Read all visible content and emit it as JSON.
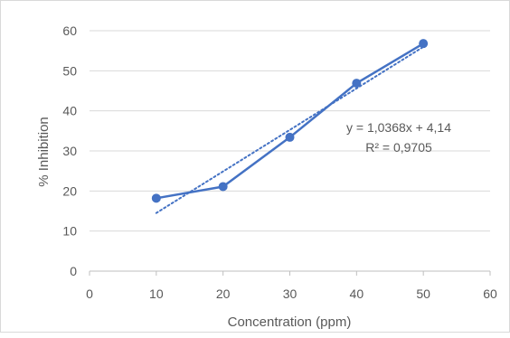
{
  "chart_data": {
    "type": "scatter",
    "title": "",
    "xlabel": "Concentration (ppm)",
    "ylabel": "% Inhibition",
    "xlim": [
      0,
      60
    ],
    "ylim": [
      0,
      60
    ],
    "x_ticks": [
      0,
      10,
      20,
      30,
      40,
      50,
      60
    ],
    "y_ticks": [
      0,
      10,
      20,
      30,
      40,
      50,
      60
    ],
    "grid": "horizontal",
    "legend": "none",
    "series": [
      {
        "x": [
          10,
          20,
          30,
          40,
          50
        ],
        "y": [
          18.2,
          21.1,
          33.4,
          46.9,
          56.8
        ],
        "color": "#4472c4",
        "marker": "circle",
        "line": "solid"
      }
    ],
    "trendline": {
      "kind": "linear",
      "slope": 1.0368,
      "intercept": 4.14,
      "x_range": [
        10,
        50
      ],
      "color": "#4472c4",
      "style": "dotted",
      "equation": "y = 1,0368x + 4,14",
      "r_squared": "R² = 0,9705"
    }
  }
}
